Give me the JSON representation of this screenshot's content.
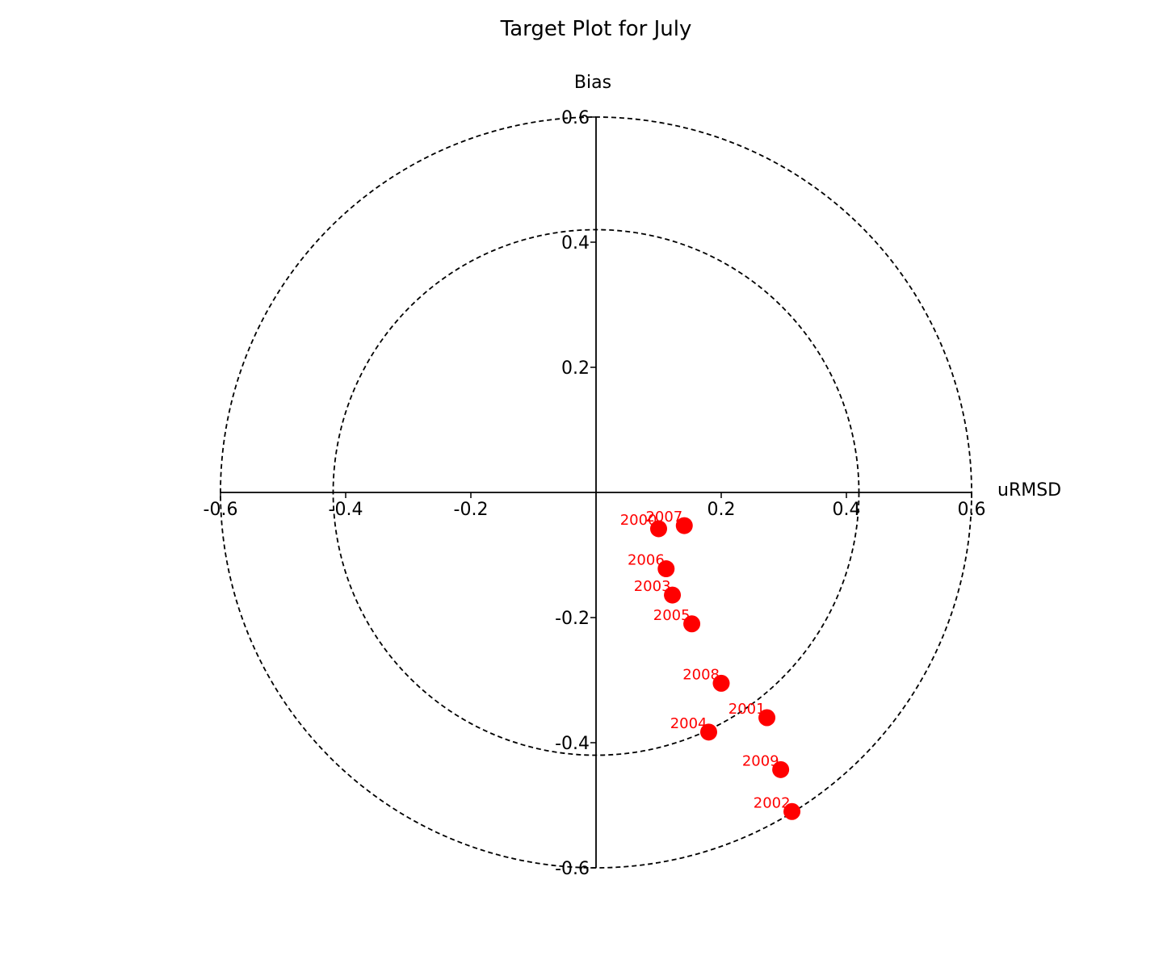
{
  "chart_data": {
    "type": "scatter",
    "title": "Target Plot for July",
    "xlabel": "uRMSD",
    "ylabel": "Bias",
    "xlim": [
      -0.6,
      0.6
    ],
    "ylim": [
      -0.6,
      0.6
    ],
    "xticks": [
      -0.6,
      -0.4,
      -0.2,
      0.2,
      0.4,
      0.6
    ],
    "xtick_labels": [
      "-0.6",
      "-0.4",
      "-0.2",
      "0.2",
      "0.4",
      "0.6"
    ],
    "yticks": [
      0.6,
      0.4,
      0.2,
      -0.2,
      -0.4,
      -0.6
    ],
    "ytick_labels": [
      "0.6",
      "0.4",
      "0.2",
      "-0.2",
      "-0.4",
      "-0.6"
    ],
    "circles": [
      0.42,
      0.6
    ],
    "grid": false,
    "marker_color": "#ff0000",
    "label_color": "#ff0000",
    "points": [
      {
        "label": "2000",
        "x": 0.1,
        "y": -0.058
      },
      {
        "label": "2007",
        "x": 0.141,
        "y": -0.053
      },
      {
        "label": "2006",
        "x": 0.112,
        "y": -0.122
      },
      {
        "label": "2003",
        "x": 0.122,
        "y": -0.164
      },
      {
        "label": "2005",
        "x": 0.153,
        "y": -0.21
      },
      {
        "label": "2008",
        "x": 0.2,
        "y": -0.305
      },
      {
        "label": "2001",
        "x": 0.273,
        "y": -0.36
      },
      {
        "label": "2004",
        "x": 0.18,
        "y": -0.383
      },
      {
        "label": "2009",
        "x": 0.295,
        "y": -0.443
      },
      {
        "label": "2002",
        "x": 0.313,
        "y": -0.51
      }
    ]
  }
}
